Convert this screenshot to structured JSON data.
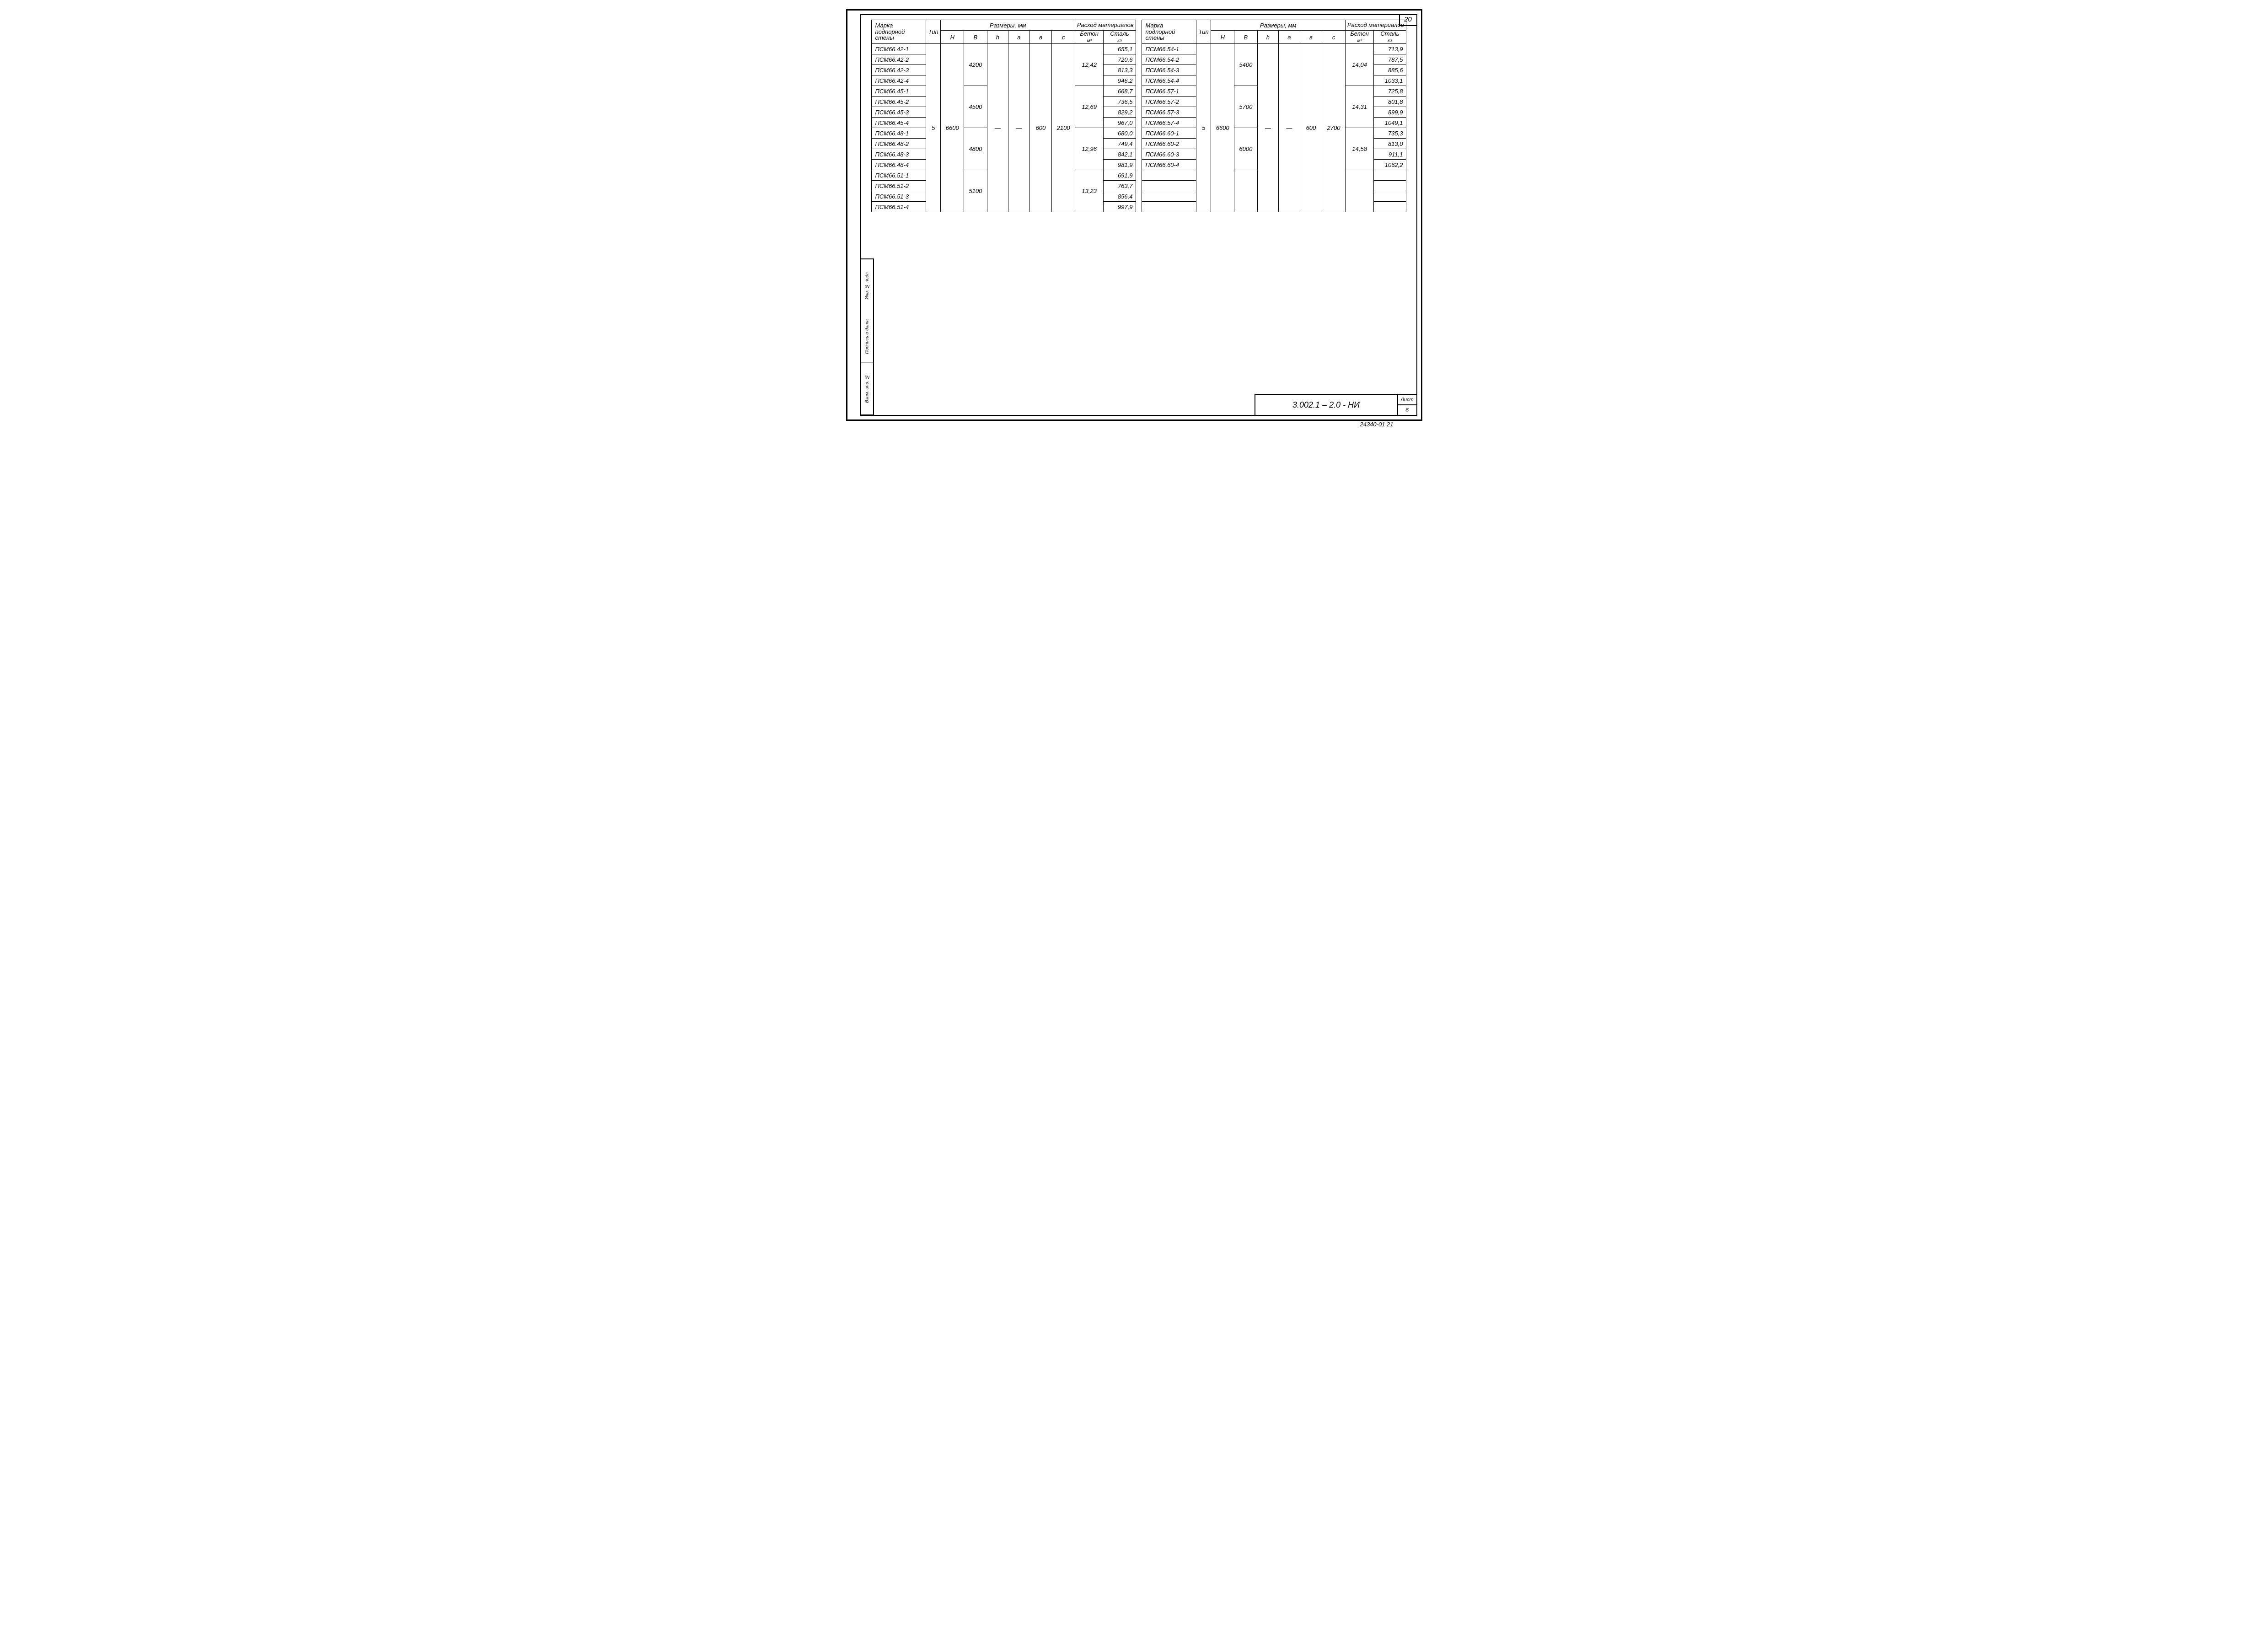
{
  "page_number": "20",
  "doc_number": "3.002.1 – 2.0 - НИ",
  "sheet_label": "Лист",
  "sheet_number": "6",
  "archive_id": "24340-01  21",
  "stamp_labels": [
    "Инв. № подл.",
    "Подпись и дата",
    "Взам. инв. №"
  ],
  "headers": {
    "marka": "Марка подпорной стены",
    "tip": "Тип",
    "razmery": "Размеры, мм",
    "rashod": "Расход материалов",
    "H": "H",
    "B": "B",
    "h": "h",
    "a": "a",
    "b": "в",
    "c": "c",
    "beton": "Бетон",
    "beton_unit": "м³",
    "stal": "Сталь",
    "stal_unit": "кг"
  },
  "left": {
    "tip": "5",
    "H": "6600",
    "a": "—",
    "h": "—",
    "b": "600",
    "c": "2100",
    "groups": [
      {
        "B": "4200",
        "beton": "12,42",
        "rows": [
          {
            "m": "ПСМ66.42-1",
            "s": "655,1"
          },
          {
            "m": "ПСМ66.42-2",
            "s": "720,6"
          },
          {
            "m": "ПСМ66.42-3",
            "s": "813,3"
          },
          {
            "m": "ПСМ66.42-4",
            "s": "946,2"
          }
        ]
      },
      {
        "B": "4500",
        "beton": "12,69",
        "rows": [
          {
            "m": "ПСМ66.45-1",
            "s": "668,7"
          },
          {
            "m": "ПСМ66.45-2",
            "s": "736,5"
          },
          {
            "m": "ПСМ66.45-3",
            "s": "829,2"
          },
          {
            "m": "ПСМ66.45-4",
            "s": "967,0"
          }
        ]
      },
      {
        "B": "4800",
        "beton": "12,96",
        "rows": [
          {
            "m": "ПСМ66.48-1",
            "s": "680,0"
          },
          {
            "m": "ПСМ66.48-2",
            "s": "749,4"
          },
          {
            "m": "ПСМ66.48-3",
            "s": "842,1"
          },
          {
            "m": "ПСМ66.48-4",
            "s": "981,9"
          }
        ]
      },
      {
        "B": "5100",
        "beton": "13,23",
        "rows": [
          {
            "m": "ПСМ66.51-1",
            "s": "691,9"
          },
          {
            "m": "ПСМ66.51-2",
            "s": "763,7"
          },
          {
            "m": "ПСМ66.51-3",
            "s": "856,4"
          },
          {
            "m": "ПСМ66.51-4",
            "s": "997,9"
          }
        ]
      }
    ]
  },
  "right": {
    "tip": "5",
    "H": "6600",
    "a": "—",
    "h": "—",
    "b": "600",
    "c": "2700",
    "groups": [
      {
        "B": "5400",
        "beton": "14,04",
        "rows": [
          {
            "m": "ПСМ66.54-1",
            "s": "713,9"
          },
          {
            "m": "ПСМ66.54-2",
            "s": "787,5"
          },
          {
            "m": "ПСМ66.54-3",
            "s": "885,6"
          },
          {
            "m": "ПСМ66.54-4",
            "s": "1033,1"
          }
        ]
      },
      {
        "B": "5700",
        "beton": "14,31",
        "rows": [
          {
            "m": "ПСМ66.57-1",
            "s": "725,8"
          },
          {
            "m": "ПСМ66.57-2",
            "s": "801,8"
          },
          {
            "m": "ПСМ66.57-3",
            "s": "899,9"
          },
          {
            "m": "ПСМ66.57-4",
            "s": "1049,1"
          }
        ]
      },
      {
        "B": "6000",
        "beton": "14,58",
        "rows": [
          {
            "m": "ПСМ66.60-1",
            "s": "735,3"
          },
          {
            "m": "ПСМ66.60-2",
            "s": "813,0"
          },
          {
            "m": "ПСМ66.60-3",
            "s": "911,1"
          },
          {
            "m": "ПСМ66.60-4",
            "s": "1062,2"
          }
        ]
      },
      {
        "B": "",
        "beton": "",
        "rows": [
          {
            "m": "",
            "s": ""
          },
          {
            "m": "",
            "s": ""
          },
          {
            "m": "",
            "s": ""
          },
          {
            "m": "",
            "s": ""
          }
        ]
      }
    ]
  }
}
